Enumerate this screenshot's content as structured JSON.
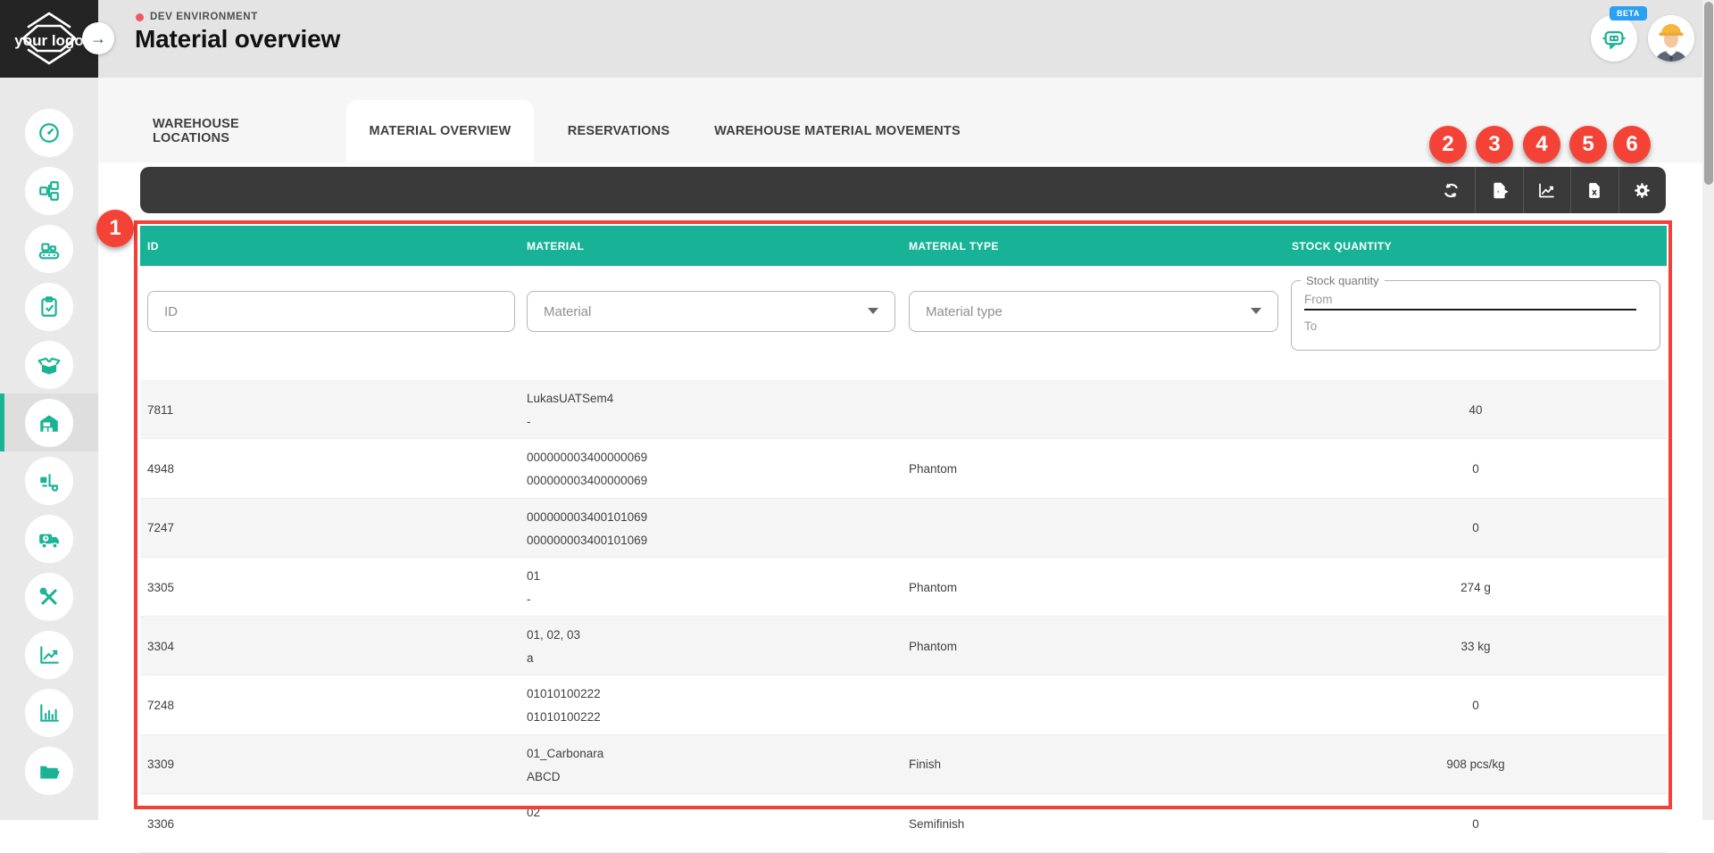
{
  "header": {
    "logo_text": "your logo",
    "env_label": "DEV ENVIRONMENT",
    "title": "Material overview",
    "beta_badge": "BETA"
  },
  "sidebar": {
    "icons": [
      "dashboard",
      "network",
      "production-line",
      "tasks",
      "package",
      "warehouse",
      "forklift",
      "delivery-truck",
      "tools",
      "analytics",
      "bar-chart",
      "documents"
    ],
    "active_icon": "warehouse"
  },
  "tabs": {
    "items": [
      {
        "label": "WAREHOUSE LOCATIONS",
        "active": false
      },
      {
        "label": "MATERIAL OVERVIEW",
        "active": true
      },
      {
        "label": "RESERVATIONS",
        "active": false
      },
      {
        "label": "WAREHOUSE MATERIAL MOVEMENTS",
        "active": false
      }
    ]
  },
  "toolbar": {
    "icons": [
      "refresh-icon",
      "export-icon",
      "chart-icon",
      "excel-icon",
      "settings-icon"
    ]
  },
  "annotations": {
    "labels": [
      "1",
      "2",
      "3",
      "4",
      "5",
      "6"
    ]
  },
  "table": {
    "columns": [
      "ID",
      "MATERIAL",
      "MATERIAL TYPE",
      "STOCK QUANTITY"
    ],
    "filters": {
      "id_placeholder": "ID",
      "material_placeholder": "Material",
      "material_type_placeholder": "Material type",
      "stock_quantity_legend": "Stock quantity",
      "from_placeholder": "From",
      "to_placeholder": "To"
    },
    "rows": [
      {
        "id": "7811",
        "material": "LukasUATSem4",
        "material_desc": "-",
        "type": "",
        "quantity": "40"
      },
      {
        "id": "4948",
        "material": "000000003400000069",
        "material_desc": "000000003400000069",
        "type": "Phantom",
        "quantity": "0"
      },
      {
        "id": "7247",
        "material": "000000003400101069",
        "material_desc": "000000003400101069",
        "type": "",
        "quantity": "0"
      },
      {
        "id": "3305",
        "material": "01",
        "material_desc": "-",
        "type": "Phantom",
        "quantity": "274 g"
      },
      {
        "id": "3304",
        "material": "01, 02, 03",
        "material_desc": "a",
        "type": "Phantom",
        "quantity": "33 kg"
      },
      {
        "id": "7248",
        "material": "01010100222",
        "material_desc": "01010100222",
        "type": "",
        "quantity": "0"
      },
      {
        "id": "3309",
        "material": "01_Carbonara",
        "material_desc": "ABCD",
        "type": "Finish",
        "quantity": "908 pcs/kg"
      },
      {
        "id": "3306",
        "material": "02",
        "material_desc": "",
        "type": "Semifinish",
        "quantity": "0"
      }
    ]
  },
  "colors": {
    "accent": "#1ab394",
    "table_header": "#18b397",
    "annotation_red": "#f2403a",
    "beta_blue": "#2b9ff2",
    "env_dot": "#f25767",
    "toolbar_bg": "#3a3a3a"
  }
}
